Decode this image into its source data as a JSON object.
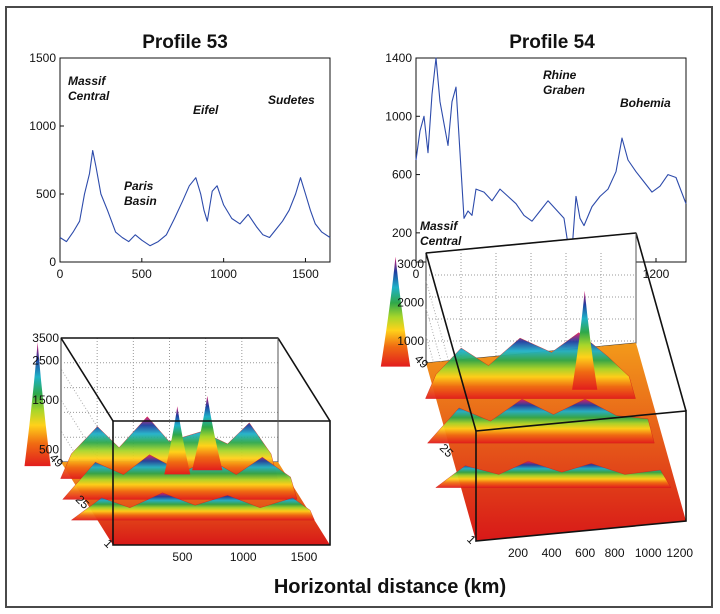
{
  "figure": {
    "xlabel": "Horizontal distance  (km)"
  },
  "chart_data": [
    {
      "id": "p53",
      "type": "line",
      "title": "Profile 53",
      "xlim": [
        0,
        1650
      ],
      "ylim": [
        0,
        1500
      ],
      "xticks": [
        0,
        500,
        1000,
        1500
      ],
      "yticks": [
        0,
        500,
        1000,
        1500
      ],
      "series": [
        {
          "color": "#2d4bab",
          "x": [
            0,
            40,
            80,
            120,
            150,
            180,
            200,
            220,
            250,
            290,
            340,
            380,
            420,
            460,
            500,
            550,
            600,
            650,
            700,
            750,
            790,
            830,
            860,
            880,
            900,
            930,
            960,
            1000,
            1050,
            1100,
            1150,
            1200,
            1240,
            1280,
            1320,
            1360,
            1400,
            1440,
            1470,
            1500,
            1530,
            1560,
            1600,
            1650
          ],
          "y": [
            180,
            150,
            220,
            300,
            500,
            650,
            820,
            700,
            500,
            380,
            220,
            180,
            150,
            200,
            160,
            120,
            150,
            200,
            320,
            450,
            560,
            620,
            500,
            380,
            300,
            520,
            560,
            420,
            320,
            280,
            350,
            260,
            200,
            180,
            240,
            300,
            380,
            500,
            620,
            500,
            380,
            280,
            220,
            180
          ]
        }
      ],
      "annotations": [
        "Massif Central",
        "Paris Basin",
        "Eifel",
        "Sudetes"
      ]
    },
    {
      "id": "p54",
      "type": "line",
      "title": "Profile 54",
      "xlim": [
        0,
        1350
      ],
      "ylim": [
        0,
        1400
      ],
      "xticks": [
        0,
        200,
        400,
        600,
        800,
        1000,
        1200
      ],
      "yticks": [
        200,
        600,
        1000,
        1400
      ],
      "series": [
        {
          "color": "#2d4bab",
          "x": [
            0,
            20,
            40,
            60,
            80,
            100,
            120,
            140,
            160,
            180,
            200,
            220,
            240,
            260,
            280,
            300,
            340,
            380,
            420,
            460,
            500,
            540,
            580,
            620,
            660,
            700,
            740,
            760,
            780,
            800,
            820,
            840,
            880,
            920,
            960,
            1000,
            1030,
            1060,
            1100,
            1140,
            1180,
            1220,
            1260,
            1300,
            1350
          ],
          "y": [
            700,
            900,
            1000,
            750,
            1150,
            1400,
            1100,
            950,
            800,
            1100,
            1200,
            750,
            300,
            350,
            320,
            500,
            480,
            420,
            500,
            450,
            400,
            320,
            280,
            350,
            420,
            360,
            300,
            120,
            80,
            450,
            300,
            250,
            380,
            450,
            500,
            620,
            850,
            700,
            620,
            550,
            480,
            520,
            600,
            580,
            400
          ]
        }
      ],
      "annotations": [
        "Rhine Graben",
        "Bohemia",
        "Massif Central"
      ]
    },
    {
      "id": "s53",
      "type": "area",
      "subtype": "3d-surface",
      "xticks": [
        500,
        1000,
        1500
      ],
      "zticks": [
        500,
        1500,
        2500,
        3500
      ],
      "ydepth_ticks": [
        "1",
        "25",
        "49"
      ]
    },
    {
      "id": "s54",
      "type": "area",
      "subtype": "3d-surface",
      "xticks": [
        200,
        400,
        600,
        800,
        1000,
        1200
      ],
      "zticks": [
        1000,
        2000,
        3000
      ],
      "ydepth_ticks": [
        "1",
        "25",
        "49"
      ]
    }
  ]
}
